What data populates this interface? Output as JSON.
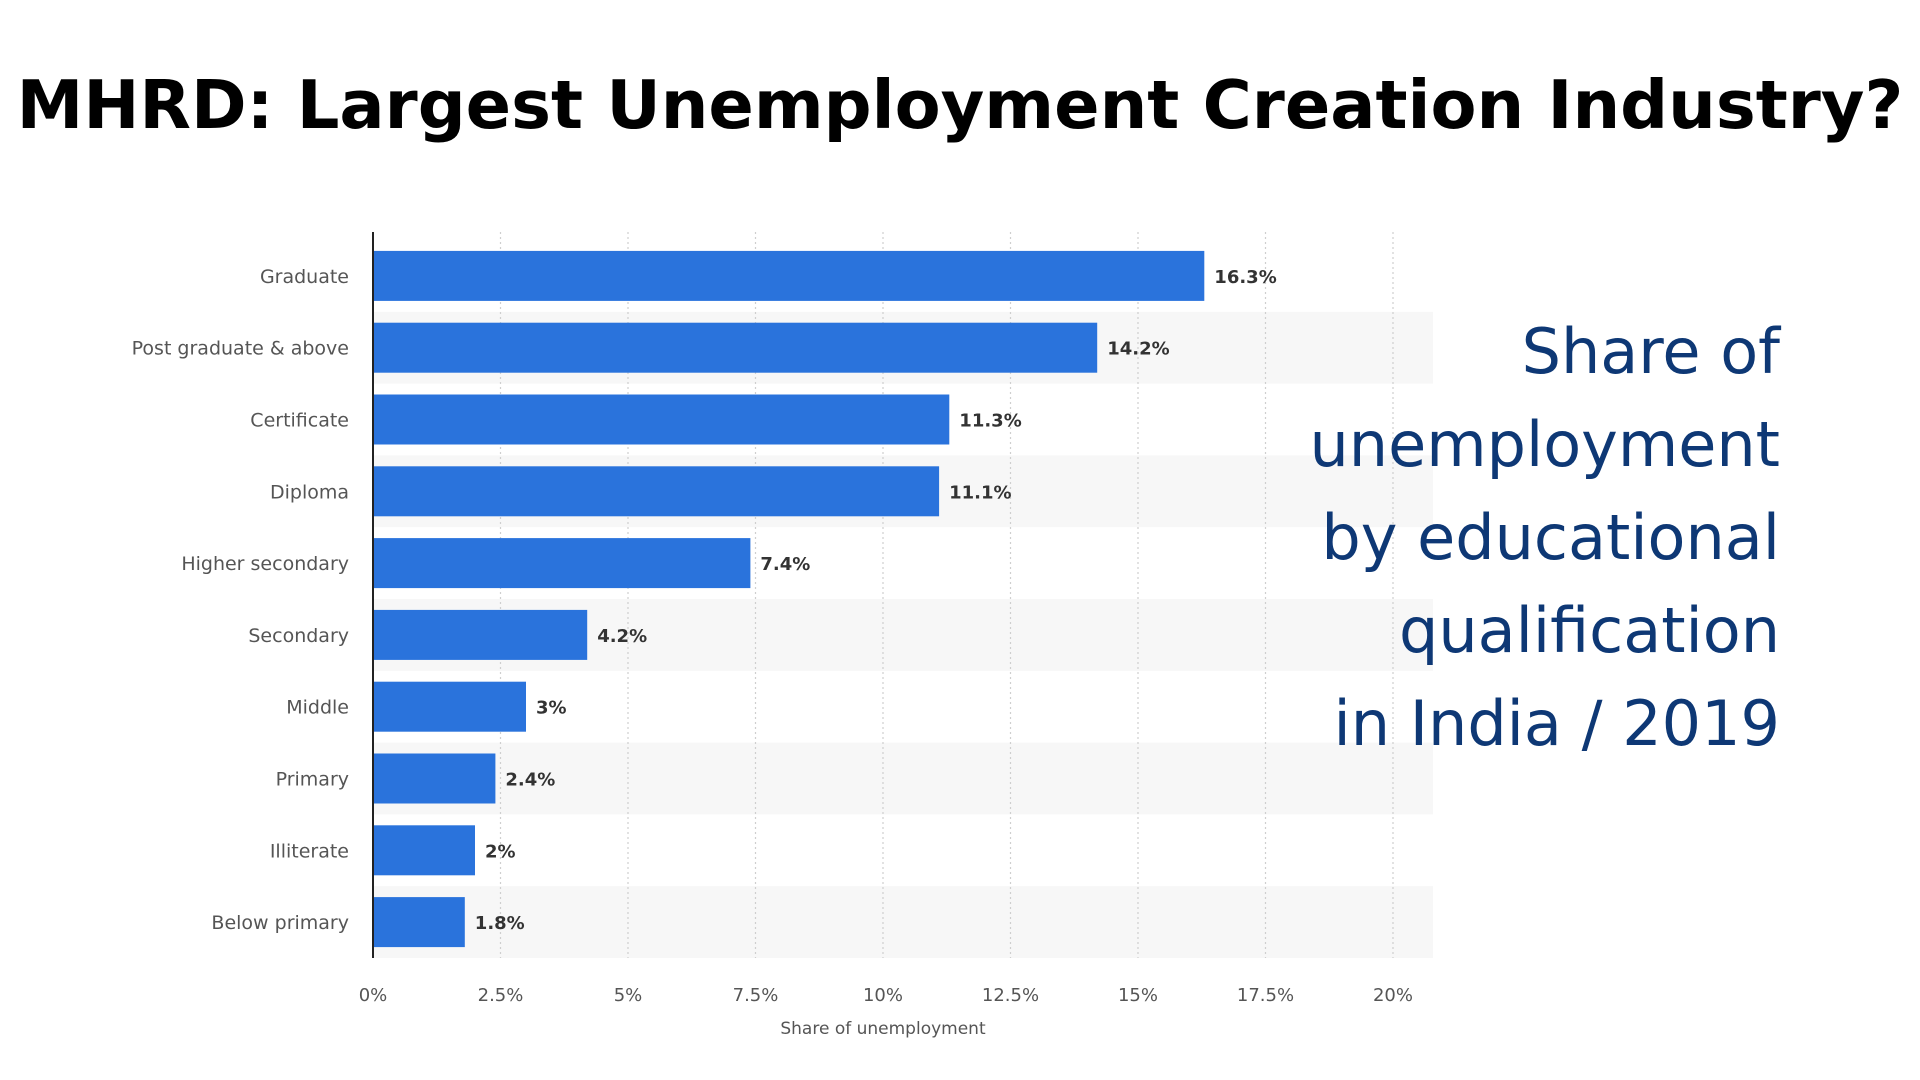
{
  "title": "MHRD: Largest Unemployment Creation Industry?",
  "caption_lines": [
    "Share of",
    "unemployment",
    "by educational",
    "qualification",
    "in India / 2019"
  ],
  "colors": {
    "bar": "#2a73dc",
    "caption": "#0e3875",
    "band": "#f7f7f7",
    "grid": "#cfcfcf",
    "axis": "#222222"
  },
  "chart_data": {
    "type": "bar",
    "orientation": "horizontal",
    "categories": [
      "Graduate",
      "Post graduate & above",
      "Certificate",
      "Diploma",
      "Higher secondary",
      "Secondary",
      "Middle",
      "Primary",
      "Illiterate",
      "Below primary"
    ],
    "values": [
      16.3,
      14.2,
      11.3,
      11.1,
      7.4,
      4.2,
      3,
      2.4,
      2,
      1.8
    ],
    "value_labels": [
      "16.3%",
      "14.2%",
      "11.3%",
      "11.1%",
      "7.4%",
      "4.2%",
      "3%",
      "2.4%",
      "2%",
      "1.8%"
    ],
    "xlabel": "Share of unemployment",
    "ylabel": "",
    "xlim": [
      0,
      20
    ],
    "x_ticks": [
      "0%",
      "2.5%",
      "5%",
      "7.5%",
      "10%",
      "12.5%",
      "15%",
      "17.5%",
      "20%"
    ],
    "x_tick_values": [
      0,
      2.5,
      5,
      7.5,
      10,
      12.5,
      15,
      17.5,
      20
    ],
    "grid": "vertical-dotted"
  }
}
